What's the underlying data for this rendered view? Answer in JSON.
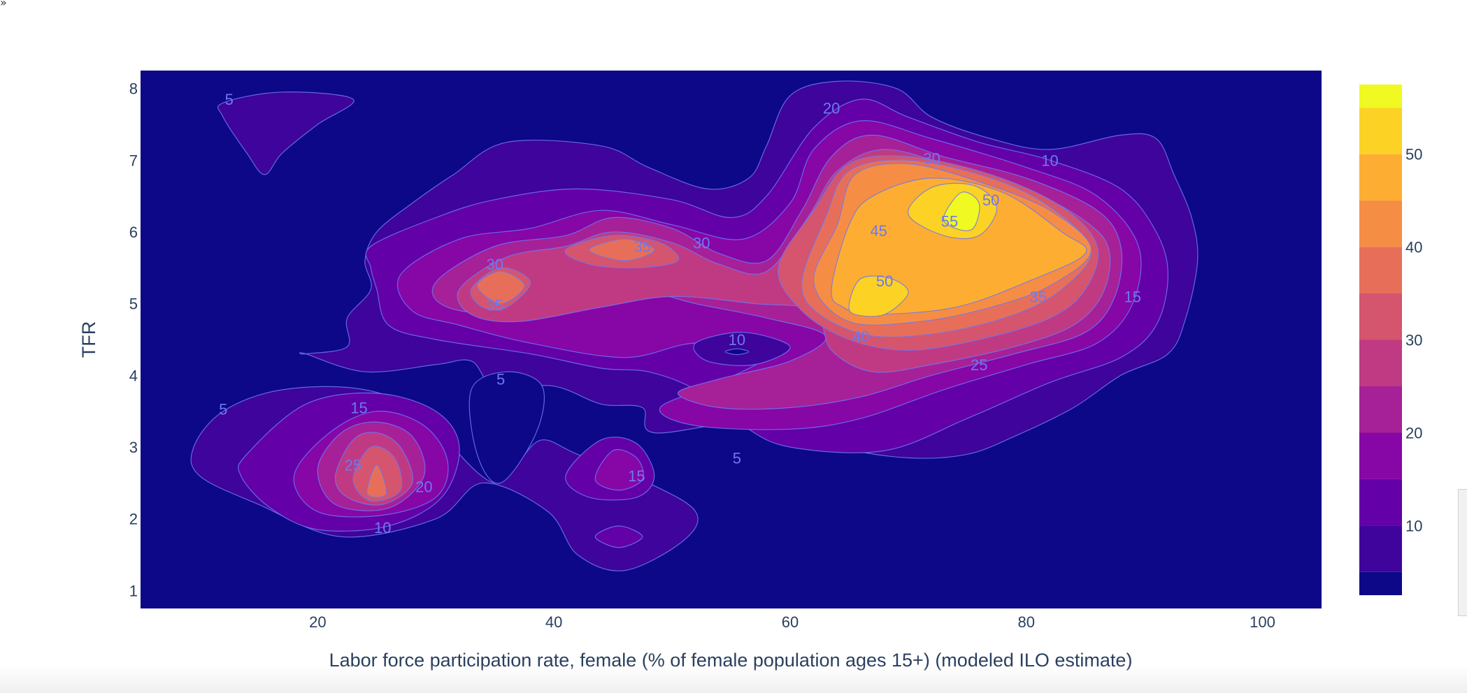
{
  "chart_data": {
    "type": "contour",
    "xlabel": "Labor force participation rate, female (% of female population ages 15+) (modeled ILO estimate)",
    "ylabel": "TFR",
    "x_range": [
      5,
      105
    ],
    "y_range": [
      0.75,
      8.25
    ],
    "x_ticks": [
      20,
      40,
      60,
      80,
      100
    ],
    "y_ticks": [
      1,
      2,
      3,
      4,
      5,
      6,
      7,
      8
    ],
    "colorbar": {
      "range": [
        2.5,
        57.5
      ],
      "ticks": [
        10,
        20,
        30,
        40,
        50
      ],
      "bands": [
        {
          "from": 2.5,
          "to": 5,
          "color": "#0d0887"
        },
        {
          "from": 5,
          "to": 10,
          "color": "#3e049c"
        },
        {
          "from": 10,
          "to": 15,
          "color": "#6300a7"
        },
        {
          "from": 15,
          "to": 20,
          "color": "#8606a6"
        },
        {
          "from": 20,
          "to": 25,
          "color": "#a62098"
        },
        {
          "from": 25,
          "to": 30,
          "color": "#c03a83"
        },
        {
          "from": 30,
          "to": 35,
          "color": "#d5546e"
        },
        {
          "from": 35,
          "to": 40,
          "color": "#e76f5a"
        },
        {
          "from": 40,
          "to": 45,
          "color": "#f68d45"
        },
        {
          "from": 45,
          "to": 50,
          "color": "#fdae32"
        },
        {
          "from": 50,
          "to": 55,
          "color": "#fcd225"
        },
        {
          "from": 55,
          "to": 57.5,
          "color": "#f0f921"
        }
      ]
    },
    "contour_line_color": "#6f78f0",
    "contour_labels": [
      {
        "text": "5",
        "x": 12.5,
        "y": 7.85
      },
      {
        "text": "5",
        "x": 12,
        "y": 3.53
      },
      {
        "text": "5",
        "x": 35.5,
        "y": 3.95
      },
      {
        "text": "5",
        "x": 55.5,
        "y": 2.85
      },
      {
        "text": "10",
        "x": 25.5,
        "y": 1.88
      },
      {
        "text": "10",
        "x": 55.5,
        "y": 4.5
      },
      {
        "text": "10",
        "x": 82,
        "y": 7.0
      },
      {
        "text": "15",
        "x": 23.5,
        "y": 3.55
      },
      {
        "text": "15",
        "x": 47,
        "y": 2.6
      },
      {
        "text": "15",
        "x": 89,
        "y": 5.1
      },
      {
        "text": "20",
        "x": 29,
        "y": 2.45
      },
      {
        "text": "20",
        "x": 63.5,
        "y": 7.73
      },
      {
        "text": "25",
        "x": 23,
        "y": 2.75
      },
      {
        "text": "25",
        "x": 76,
        "y": 4.15
      },
      {
        "text": "30",
        "x": 35,
        "y": 5.55
      },
      {
        "text": "30",
        "x": 52.5,
        "y": 5.85
      },
      {
        "text": "30",
        "x": 72,
        "y": 7.03
      },
      {
        "text": "35",
        "x": 35,
        "y": 4.98
      },
      {
        "text": "35",
        "x": 47.5,
        "y": 5.8
      },
      {
        "text": "35",
        "x": 81,
        "y": 5.1
      },
      {
        "text": "40",
        "x": 66,
        "y": 4.55
      },
      {
        "text": "45",
        "x": 67.5,
        "y": 6.02
      },
      {
        "text": "50",
        "x": 68,
        "y": 5.32
      },
      {
        "text": "50",
        "x": 77,
        "y": 6.45
      },
      {
        "text": "55",
        "x": 73.5,
        "y": 6.15
      }
    ]
  },
  "decorations": {
    "corner_glyph": "»",
    "icons": [
      "expand-icon"
    ]
  }
}
